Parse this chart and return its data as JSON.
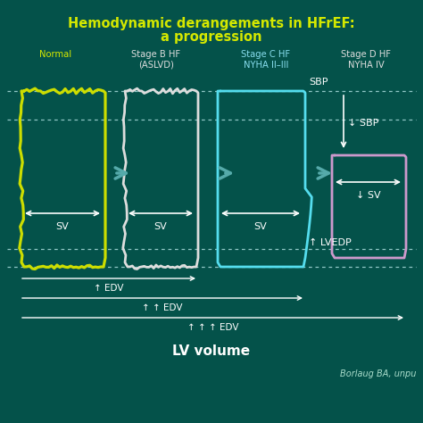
{
  "title_line1": "Hemodynamic derangements in HFrEF:",
  "title_line2": "a progression",
  "title_color": "#d4e800",
  "background_color": "#04524a",
  "figsize": [
    4.74,
    4.74
  ],
  "dpi": 100,
  "stage_labels": [
    "Normal",
    "Stage B HF\n(ASLVD)",
    "Stage C HF\nNYHA II–III",
    "Stage D HF\nNYHA IV"
  ],
  "stage_label_colors": [
    "#d4e800",
    "#dddddd",
    "#88ddee",
    "#dddddd"
  ],
  "loop_colors": [
    "#ccdd00",
    "#dddddd",
    "#55ddee",
    "#cc99cc"
  ],
  "lv_volume_label": "LV volume",
  "attribution": "Borlaug BA, unpu",
  "sbp_stageC_label": "SBP",
  "sbp_stageD_label": "↓ SBP",
  "lvedp_label": "↑ LVEDP",
  "sv_label": "SV",
  "sv_down_label": "↓ SV",
  "edv_labels": [
    "↑ EDV",
    "↑ ↑ EDV",
    "↑ ↑ ↑ EDV"
  ],
  "arrow_color": "#55aaaa",
  "dashed_line_color": "#aadddd",
  "white": "#ffffff"
}
